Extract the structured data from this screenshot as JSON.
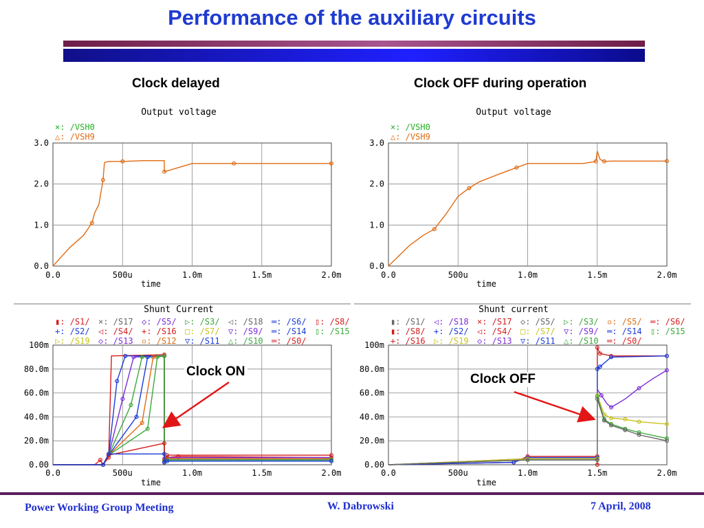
{
  "slide": {
    "title": "Performance of the auxiliary circuits",
    "left_heading": "Clock delayed",
    "right_heading": "Clock OFF during operation"
  },
  "annotations": {
    "clock_on": "Clock ON",
    "clock_off": "Clock OFF"
  },
  "footer": {
    "left": "Power Working Group Meeting",
    "center": "W. Dabrowski",
    "right": "7 April, 2008"
  },
  "chart_data": [
    {
      "type": "line",
      "title": "Output voltage",
      "xlabel": "time",
      "ylabel": "",
      "xlim": [
        0,
        0.002
      ],
      "ylim": [
        0,
        3.0
      ],
      "x_ticks": [
        "0.0",
        "500u",
        "1.0m",
        "1.5m",
        "2.0m"
      ],
      "y_ticks": [
        "0.0",
        "1.0",
        "2.0",
        "3.0"
      ],
      "grid": true,
      "legend": [
        {
          "marker": "×:",
          "name": "/VSH0",
          "color": "#22b122"
        },
        {
          "marker": "△:",
          "name": "/VSH9",
          "color": "#e06a10"
        }
      ],
      "series": [
        {
          "name": "/VSH9",
          "color": "#e06a10",
          "x": [
            0,
            0.00012,
            0.00022,
            0.00028,
            0.0003,
            0.00033,
            0.00036,
            0.00037,
            0.0004,
            0.0005,
            0.00065,
            0.0008,
            0.0008,
            0.00095,
            0.001,
            0.0013,
            0.0016,
            0.0019,
            0.002
          ],
          "y": [
            0.0,
            0.45,
            0.75,
            1.05,
            1.3,
            1.5,
            2.1,
            2.52,
            2.55,
            2.55,
            2.57,
            2.57,
            2.3,
            2.45,
            2.5,
            2.5,
            2.5,
            2.5,
            2.5
          ]
        }
      ]
    },
    {
      "type": "line",
      "title": "Output voltage",
      "xlabel": "time",
      "ylabel": "",
      "xlim": [
        0,
        0.002
      ],
      "ylim": [
        0,
        3.0
      ],
      "x_ticks": [
        "0.0",
        "500u",
        "1.0m",
        "1.5m",
        "2.0m"
      ],
      "y_ticks": [
        "0.0",
        "1.0",
        "2.0",
        "3.0"
      ],
      "grid": true,
      "legend": [
        {
          "marker": "×:",
          "name": "/VSH0",
          "color": "#22b122"
        },
        {
          "marker": "△:",
          "name": "/VSH9",
          "color": "#e06a10"
        }
      ],
      "series": [
        {
          "name": "/VSH9",
          "color": "#e06a10",
          "x": [
            0,
            0.00015,
            0.00025,
            0.00033,
            0.00042,
            0.0005,
            0.00058,
            0.00065,
            0.0008,
            0.00092,
            0.001,
            0.0014,
            0.00149,
            0.0015,
            0.00152,
            0.00155,
            0.0016,
            0.0017,
            0.002
          ],
          "y": [
            0.0,
            0.5,
            0.75,
            0.9,
            1.3,
            1.7,
            1.9,
            2.05,
            2.25,
            2.4,
            2.5,
            2.5,
            2.55,
            2.8,
            2.6,
            2.55,
            2.56,
            2.56,
            2.56
          ]
        }
      ]
    },
    {
      "type": "line",
      "title": "Shunt Current",
      "xlabel": "time",
      "ylabel": "",
      "xlim": [
        0,
        0.002
      ],
      "ylim": [
        0,
        0.1
      ],
      "x_ticks": [
        "0.0",
        "500u",
        "1.0m",
        "1.5m",
        "2.0m"
      ],
      "y_ticks": [
        "0.00",
        "20.0m",
        "40.0m",
        "60.0m",
        "80.0m",
        "100m"
      ],
      "grid": true,
      "legend": [
        {
          "marker": "▮:",
          "name": "/S1/",
          "color": "#d41c1c"
        },
        {
          "marker": "×:",
          "name": "/S17",
          "color": "#666666"
        },
        {
          "marker": "◇:",
          "name": "/S5/",
          "color": "#7a2bd8"
        },
        {
          "marker": "▷:",
          "name": "/S3/",
          "color": "#3aa63a"
        },
        {
          "marker": "◁:",
          "name": "/S18",
          "color": "#666666"
        },
        {
          "marker": "═:",
          "name": "/S6/",
          "color": "#1a3ad8"
        },
        {
          "marker": "▯:",
          "name": "/S8/",
          "color": "#d41c1c"
        },
        {
          "marker": "+:",
          "name": "/S2/",
          "color": "#1a3ad8"
        },
        {
          "marker": "◁:",
          "name": "/S4/",
          "color": "#d41c1c"
        },
        {
          "marker": "+:",
          "name": "/S16",
          "color": "#d41c1c"
        },
        {
          "marker": "□:",
          "name": "/S7/",
          "color": "#c8c21a"
        },
        {
          "marker": "▽:",
          "name": "/S9/",
          "color": "#7a2bd8"
        },
        {
          "marker": "═:",
          "name": "/S14",
          "color": "#1a3ad8"
        },
        {
          "marker": "▯:",
          "name": "/S15",
          "color": "#3aa63a"
        },
        {
          "marker": "▷:",
          "name": "/S19",
          "color": "#c8c21a"
        },
        {
          "marker": "◇:",
          "name": "/S13",
          "color": "#7a2bd8"
        },
        {
          "marker": "▫:",
          "name": "/S12",
          "color": "#e06a10"
        },
        {
          "marker": "▽:",
          "name": "/S11",
          "color": "#1a3ad8"
        },
        {
          "marker": "△:",
          "name": "/S10",
          "color": "#3aa63a"
        },
        {
          "marker": "═:",
          "name": "/S0/",
          "color": "#d41c1c"
        }
      ],
      "series": [
        {
          "name": "/S1/",
          "color": "#d41c1c",
          "x": [
            0,
            0.0003,
            0.00034,
            0.00036,
            0.0004,
            0.00042,
            0.0008,
            0.0008,
            0.0008,
            0.00082,
            0.0009,
            0.002
          ],
          "y": [
            0,
            0,
            0.004,
            0.0,
            0.006,
            0.091,
            0.092,
            0.01,
            0.002,
            0.006,
            0.007,
            0.006
          ]
        },
        {
          "name": "/S2/",
          "color": "#1a3ad8",
          "x": [
            0,
            0.00036,
            0.0004,
            0.00046,
            0.00052,
            0.0008,
            0.0008,
            0.00082,
            0.002
          ],
          "y": [
            0,
            0,
            0.008,
            0.07,
            0.091,
            0.091,
            0.004,
            0.005,
            0.005
          ]
        },
        {
          "name": "/S5/",
          "color": "#7a2bd8",
          "x": [
            0,
            0.00036,
            0.0004,
            0.0005,
            0.00058,
            0.0008,
            0.0008,
            0.00082,
            0.002
          ],
          "y": [
            0,
            0,
            0.008,
            0.055,
            0.09,
            0.091,
            0.005,
            0.006,
            0.006
          ]
        },
        {
          "name": "/S3/",
          "color": "#3aa63a",
          "x": [
            0,
            0.00036,
            0.0004,
            0.00056,
            0.00064,
            0.0008,
            0.0008,
            0.00082,
            0.002
          ],
          "y": [
            0,
            0,
            0.008,
            0.05,
            0.09,
            0.091,
            0.004,
            0.005,
            0.005
          ]
        },
        {
          "name": "/S6/",
          "color": "#1a3ad8",
          "x": [
            0,
            0.00036,
            0.0004,
            0.0006,
            0.00068,
            0.0008,
            0.0008,
            0.00082,
            0.002
          ],
          "y": [
            0,
            0,
            0.008,
            0.04,
            0.09,
            0.091,
            0.003,
            0.004,
            0.004
          ]
        },
        {
          "name": "/S12",
          "color": "#e06a10",
          "x": [
            0,
            0.00036,
            0.0004,
            0.00064,
            0.00072,
            0.0008,
            0.0008,
            0.00082,
            0.002
          ],
          "y": [
            0,
            0,
            0.008,
            0.035,
            0.09,
            0.091,
            0.004,
            0.005,
            0.005
          ]
        },
        {
          "name": "/S10",
          "color": "#3aa63a",
          "x": [
            0,
            0.00036,
            0.0004,
            0.00068,
            0.00075,
            0.0008,
            0.0008,
            0.00082,
            0.002
          ],
          "y": [
            0,
            0,
            0.008,
            0.03,
            0.09,
            0.091,
            0.003,
            0.004,
            0.004
          ]
        },
        {
          "name": "/S0/",
          "color": "#d41c1c",
          "x": [
            0,
            0.00036,
            0.0004,
            0.0008,
            0.0008,
            0.00082,
            0.002
          ],
          "y": [
            0,
            0,
            0.008,
            0.018,
            0.002,
            0.008,
            0.008
          ]
        },
        {
          "name": "/S11",
          "color": "#1a3ad8",
          "x": [
            0,
            0.00036,
            0.0004,
            0.0008,
            0.0008,
            0.00082,
            0.002
          ],
          "y": [
            0,
            0,
            0.009,
            0.009,
            0.002,
            0.003,
            0.003
          ]
        }
      ]
    },
    {
      "type": "line",
      "title": "Shunt current",
      "xlabel": "time",
      "ylabel": "",
      "xlim": [
        0,
        0.002
      ],
      "ylim": [
        0,
        0.1
      ],
      "x_ticks": [
        "0.0",
        "500u",
        "1.0m",
        "1.5m",
        "2.0m"
      ],
      "y_ticks": [
        "0.00",
        "20.0m",
        "40.0m",
        "60.0m",
        "80.0m",
        "100m"
      ],
      "grid": true,
      "legend": [
        {
          "marker": "▮:",
          "name": "/S1/",
          "color": "#666666"
        },
        {
          "marker": "◁:",
          "name": "/S18",
          "color": "#7a2bd8"
        },
        {
          "marker": "×:",
          "name": "/S17",
          "color": "#d41c1c"
        },
        {
          "marker": "◇:",
          "name": "/S5/",
          "color": "#666666"
        },
        {
          "marker": "▷:",
          "name": "/S3/",
          "color": "#3aa63a"
        },
        {
          "marker": "▫:",
          "name": "/S5/",
          "color": "#e06a10"
        },
        {
          "marker": "═:",
          "name": "/S6/",
          "color": "#d41c1c"
        },
        {
          "marker": "▮:",
          "name": "/S8/",
          "color": "#d41c1c"
        },
        {
          "marker": "+:",
          "name": "/S2/",
          "color": "#1a3ad8"
        },
        {
          "marker": "◁:",
          "name": "/S4/",
          "color": "#d41c1c"
        },
        {
          "marker": "□:",
          "name": "/S7/",
          "color": "#c8c21a"
        },
        {
          "marker": "▽:",
          "name": "/S9/",
          "color": "#7a2bd8"
        },
        {
          "marker": "═:",
          "name": "/S14",
          "color": "#1a3ad8"
        },
        {
          "marker": "▯:",
          "name": "/S15",
          "color": "#3aa63a"
        },
        {
          "marker": "+:",
          "name": "/S16",
          "color": "#d41c1c"
        },
        {
          "marker": "▷:",
          "name": "/S19",
          "color": "#c8c21a"
        },
        {
          "marker": "◇:",
          "name": "/S13",
          "color": "#7a2bd8"
        },
        {
          "marker": "▽:",
          "name": "/S11",
          "color": "#1a3ad8"
        },
        {
          "marker": "△:",
          "name": "/S10",
          "color": "#3aa63a"
        },
        {
          "marker": "═:",
          "name": "/S0/",
          "color": "#d41c1c"
        }
      ],
      "series": [
        {
          "name": "/S1/",
          "color": "#d41c1c",
          "x": [
            0,
            0.0009,
            0.001,
            0.0015,
            0.0015,
            0.0015,
            0.00152,
            0.0016,
            0.002
          ],
          "y": [
            0,
            0.002,
            0.007,
            0.007,
            0.0,
            0.098,
            0.093,
            0.091,
            0.091
          ]
        },
        {
          "name": "/S2/",
          "color": "#1a3ad8",
          "x": [
            0,
            0.0009,
            0.001,
            0.0015,
            0.0015,
            0.00152,
            0.0016,
            0.002
          ],
          "y": [
            0,
            0.002,
            0.006,
            0.006,
            0.08,
            0.082,
            0.09,
            0.091
          ]
        },
        {
          "name": "/S9/",
          "color": "#7a2bd8",
          "x": [
            0,
            0.001,
            0.0015,
            0.0015,
            0.00153,
            0.00157,
            0.0016,
            0.0017,
            0.0018,
            0.0019,
            0.002
          ],
          "y": [
            0,
            0.005,
            0.005,
            0.063,
            0.058,
            0.051,
            0.048,
            0.055,
            0.064,
            0.072,
            0.079
          ]
        },
        {
          "name": "/S7/",
          "color": "#c8c21a",
          "x": [
            0,
            0.001,
            0.0015,
            0.0015,
            0.00155,
            0.0016,
            0.0017,
            0.0018,
            0.002
          ],
          "y": [
            0,
            0.005,
            0.005,
            0.058,
            0.042,
            0.039,
            0.038,
            0.036,
            0.034
          ]
        },
        {
          "name": "/S10",
          "color": "#3aa63a",
          "x": [
            0,
            0.001,
            0.0015,
            0.0015,
            0.00155,
            0.0016,
            0.0017,
            0.0018,
            0.002
          ],
          "y": [
            0,
            0.004,
            0.004,
            0.057,
            0.038,
            0.034,
            0.03,
            0.027,
            0.022
          ]
        },
        {
          "name": "/S0/",
          "color": "#666666",
          "x": [
            0,
            0.001,
            0.0015,
            0.0015,
            0.00155,
            0.0016,
            0.0017,
            0.0018,
            0.002
          ],
          "y": [
            0,
            0.004,
            0.004,
            0.055,
            0.037,
            0.033,
            0.029,
            0.025,
            0.02
          ]
        }
      ]
    }
  ]
}
